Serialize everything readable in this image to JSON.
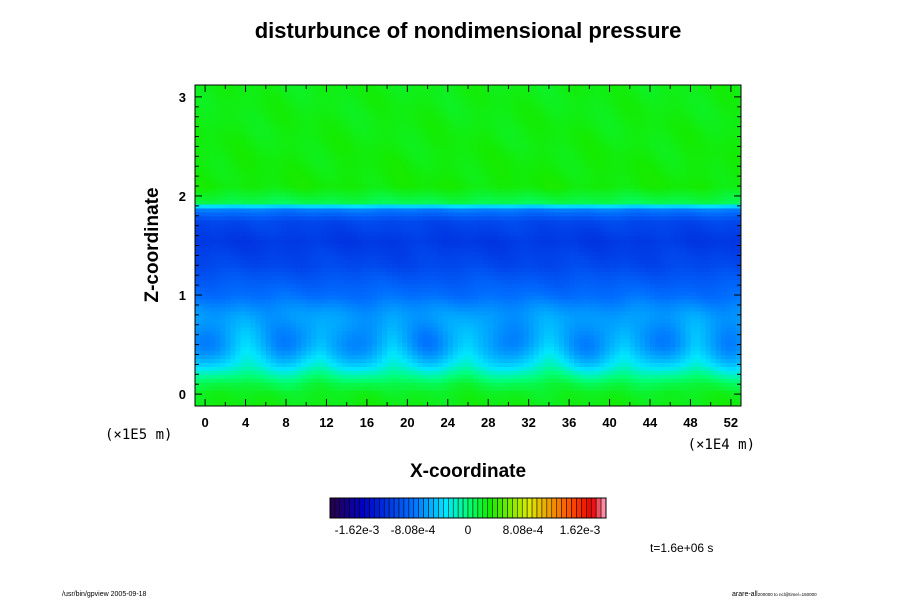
{
  "chart_data": {
    "type": "heatmap",
    "title": "disturbunce of nondimensional pressure",
    "xlabel": "X-coordinate",
    "ylabel": "Z-coordinate",
    "x_unit": "(×1E4 m)",
    "y_unit": "(×1E5 m)",
    "x_ticks": [
      "0",
      "4",
      "8",
      "12",
      "16",
      "20",
      "24",
      "28",
      "32",
      "36",
      "40",
      "44",
      "48",
      "52"
    ],
    "y_ticks": [
      "0",
      "1",
      "2",
      "3"
    ],
    "xlim": [
      -1,
      53
    ],
    "ylim": [
      -0.12,
      3.12
    ],
    "colorbar": {
      "ticks": [
        "-1.62e-3",
        "-8.08e-4",
        "0",
        "8.08e-4",
        "1.62e-3"
      ],
      "range": [
        -0.002,
        0.002
      ]
    },
    "field_profile": {
      "description_levels_by_z": [
        {
          "z": -0.12,
          "value": 0.00028
        },
        {
          "z": 0.1,
          "value": 0.0002
        },
        {
          "z": 0.3,
          "value": -0.0001
        },
        {
          "z": 0.5,
          "value": -0.0003
        },
        {
          "z": 0.8,
          "value": -0.00055
        },
        {
          "z": 1.0,
          "value": -0.0008
        },
        {
          "z": 1.3,
          "value": -0.00105
        },
        {
          "z": 1.55,
          "value": -0.00115
        },
        {
          "z": 1.75,
          "value": -0.00105
        },
        {
          "z": 1.88,
          "value": -0.0007
        },
        {
          "z": 1.93,
          "value": 0.0001
        },
        {
          "z": 2.1,
          "value": 0.0003
        },
        {
          "z": 2.5,
          "value": 0.00028
        },
        {
          "z": 3.12,
          "value": 0.00026
        }
      ],
      "lobe_centers_x": [
        0,
        8,
        15,
        22,
        30,
        38,
        45,
        52
      ]
    },
    "time_label": "t=1.6e+06 s"
  },
  "footer": {
    "left": "/usr/bin/gpview 2005-09-18",
    "right_main": "arare-all",
    "right_sub": "200000 to ncl@time/=160000"
  }
}
